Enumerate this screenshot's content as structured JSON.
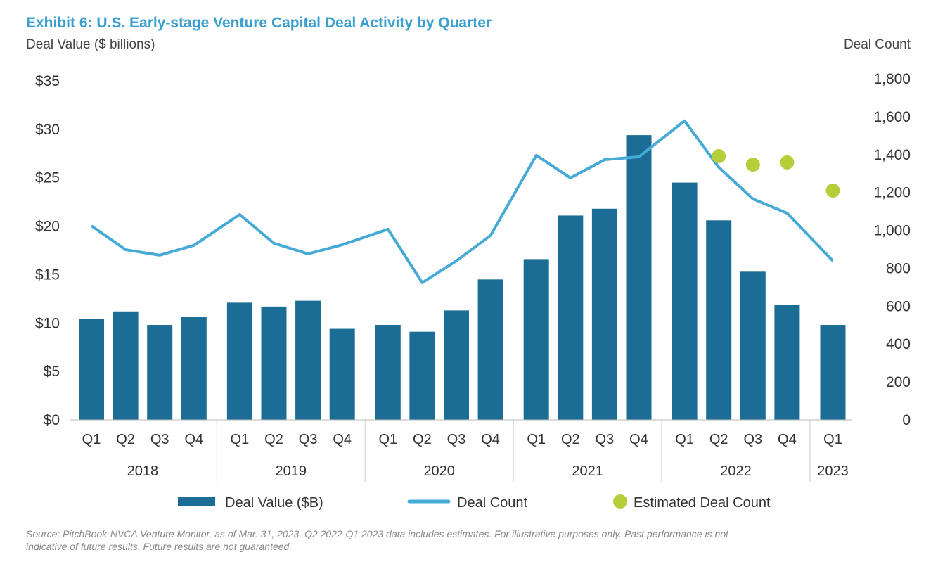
{
  "chart_data": {
    "type": "bar",
    "title": "Exhibit 6: U.S. Early-stage Venture Capital Deal Activity by Quarter",
    "ylabel": "Deal Value ($ billions)",
    "y2label": "Deal Count",
    "ylim": [
      0,
      35
    ],
    "y2lim": [
      0,
      1800
    ],
    "yticks": [
      "$0",
      "$5",
      "$10",
      "$15",
      "$20",
      "$25",
      "$30",
      "$35"
    ],
    "y2ticks": [
      "0",
      "200",
      "400",
      "600",
      "800",
      "1,000",
      "1,200",
      "1,400",
      "1,600",
      "1,800"
    ],
    "groups": [
      {
        "year": "2018",
        "quarters": [
          "Q1",
          "Q2",
          "Q3",
          "Q4"
        ]
      },
      {
        "year": "2019",
        "quarters": [
          "Q1",
          "Q2",
          "Q3",
          "Q4"
        ]
      },
      {
        "year": "2020",
        "quarters": [
          "Q1",
          "Q2",
          "Q3",
          "Q4"
        ]
      },
      {
        "year": "2021",
        "quarters": [
          "Q1",
          "Q2",
          "Q3",
          "Q4"
        ]
      },
      {
        "year": "2022",
        "quarters": [
          "Q1",
          "Q2",
          "Q3",
          "Q4"
        ]
      },
      {
        "year": "2023",
        "quarters": [
          "Q1"
        ]
      }
    ],
    "series": [
      {
        "name": "Deal Value ($B)",
        "type": "bar",
        "axis": "left",
        "color": "#1b6d96",
        "values": [
          10.4,
          11.2,
          9.8,
          10.6,
          12.1,
          11.7,
          12.3,
          9.4,
          9.8,
          9.1,
          11.3,
          14.5,
          16.6,
          21.1,
          21.8,
          29.4,
          24.5,
          20.6,
          15.3,
          11.9,
          9.8
        ]
      },
      {
        "name": "Deal Count",
        "type": "line",
        "axis": "right",
        "color": "#45aad6",
        "values": [
          1024,
          898,
          869,
          921,
          1084,
          932,
          876,
          924,
          1006,
          724,
          839,
          973,
          1396,
          1277,
          1373,
          1388,
          1578,
          1333,
          1166,
          1091,
          839
        ]
      },
      {
        "name": "Estimated Deal Count",
        "type": "scatter",
        "axis": "right",
        "color": "#b5cf3a",
        "values": [
          null,
          null,
          null,
          null,
          null,
          null,
          null,
          null,
          null,
          null,
          null,
          null,
          null,
          null,
          null,
          null,
          null,
          1392,
          1347,
          1359,
          1210
        ]
      }
    ],
    "legend": "bottom",
    "grid": false
  },
  "source": "Source: PitchBook-NVCA Venture Monitor, as of Mar. 31, 2023. Q2 2022-Q1 2023 data includes estimates. For illustrative purposes only. Past performance is not",
  "source2": "indicative of future results. Future results are not guaranteed."
}
